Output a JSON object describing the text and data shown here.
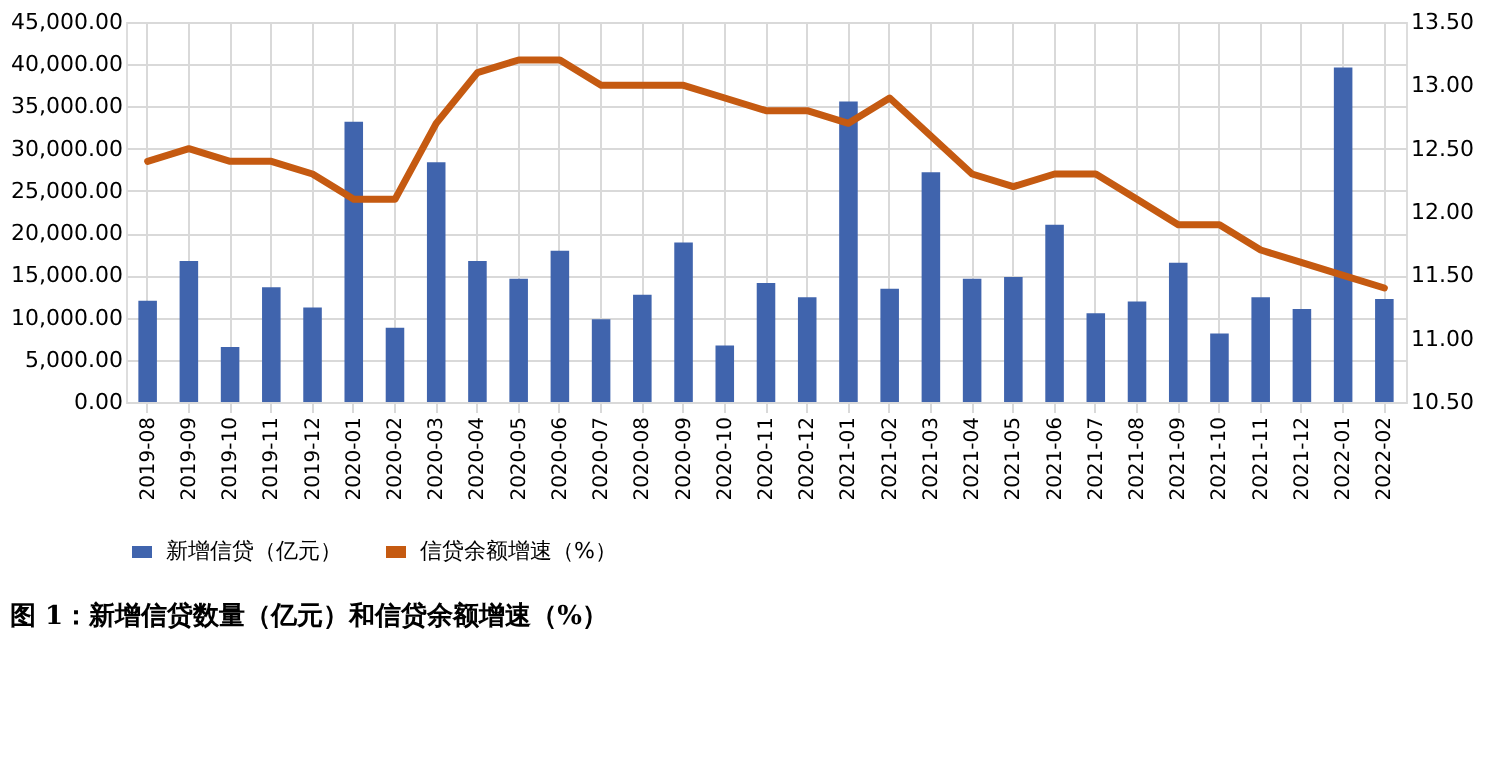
{
  "chart_data": {
    "type": "bar",
    "title": "图 1：新增信贷数量（亿元）和信贷余额增速（%）",
    "categories": [
      "2019-08",
      "2019-09",
      "2019-10",
      "2019-11",
      "2019-12",
      "2020-01",
      "2020-02",
      "2020-03",
      "2020-04",
      "2020-05",
      "2020-06",
      "2020-07",
      "2020-08",
      "2020-09",
      "2020-10",
      "2020-11",
      "2020-12",
      "2021-01",
      "2021-02",
      "2021-03",
      "2021-04",
      "2021-05",
      "2021-06",
      "2021-07",
      "2021-08",
      "2021-09",
      "2021-10",
      "2021-11",
      "2021-12",
      "2022-01",
      "2022-02"
    ],
    "series": [
      {
        "name": "新增信贷（亿元）",
        "color": "#4064ad",
        "values": [
          12000,
          16700,
          6500,
          13600,
          11200,
          33200,
          8800,
          28400,
          16700,
          14600,
          17900,
          9800,
          12700,
          18900,
          6700,
          14100,
          12400,
          35600,
          13400,
          27200,
          14600,
          14800,
          21000,
          10500,
          11900,
          16500,
          8100,
          12400,
          11000,
          39600,
          12200
        ]
      },
      {
        "name": "信贷余额增速（%）",
        "type": "line",
        "axis": "y2",
        "color": "#c55a11",
        "values": [
          12.4,
          12.5,
          12.4,
          12.4,
          12.3,
          12.1,
          12.1,
          12.7,
          13.1,
          13.2,
          13.2,
          13.0,
          13.0,
          13.0,
          12.9,
          12.8,
          12.8,
          12.7,
          12.9,
          12.6,
          12.3,
          12.2,
          12.3,
          12.3,
          12.1,
          11.9,
          11.9,
          11.7,
          11.6,
          11.5,
          11.4
        ]
      }
    ],
    "ylim": [
      0,
      45000
    ],
    "yticks": [
      {
        "value": 0,
        "label": "0.00"
      },
      {
        "value": 5000,
        "label": "5,000.00"
      },
      {
        "value": 10000,
        "label": "10,000.00"
      },
      {
        "value": 15000,
        "label": "15,000.00"
      },
      {
        "value": 20000,
        "label": "20,000.00"
      },
      {
        "value": 25000,
        "label": "25,000.00"
      },
      {
        "value": 30000,
        "label": "30,000.00"
      },
      {
        "value": 35000,
        "label": "35,000.00"
      },
      {
        "value": 40000,
        "label": "40,000.00"
      },
      {
        "value": 45000,
        "label": "45,000.00"
      }
    ],
    "y2lim": [
      10.5,
      13.5
    ],
    "y2ticks": [
      {
        "value": 10.5,
        "label": "10.50"
      },
      {
        "value": 11,
        "label": "11.00"
      },
      {
        "value": 11.5,
        "label": "11.50"
      },
      {
        "value": 12,
        "label": "12.00"
      },
      {
        "value": 12.5,
        "label": "12.50"
      },
      {
        "value": 13,
        "label": "13.00"
      },
      {
        "value": 13.5,
        "label": "13.50"
      }
    ],
    "grid": true,
    "legend": "bottom"
  }
}
